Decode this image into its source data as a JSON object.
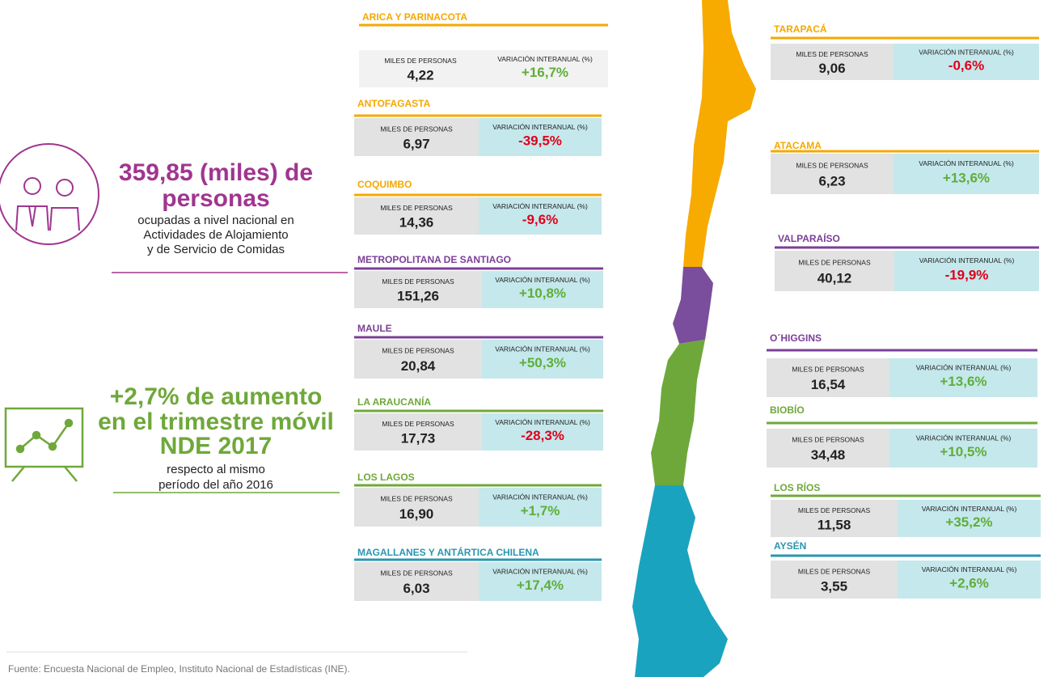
{
  "summary": {
    "employed": {
      "headline": [
        "359,85 (miles) de",
        "personas"
      ],
      "lines": [
        "ocupadas a nivel nacional en",
        "Actividades de Alojamiento",
        "y de Servicio de Comidas"
      ]
    },
    "growth": {
      "headline": [
        "+2,7% de aumento",
        "en el trimestre móvil",
        "NDE 2017"
      ],
      "lines": [
        "respecto al mismo",
        "período del año 2016"
      ]
    }
  },
  "regions": [
    {
      "name": "ARICA Y PARINACOTA",
      "color": "#f5a800",
      "persons_label": "MILES DE PERSONAS",
      "persons": "4,22",
      "variation_label": "VARIACIÓN INTERANUAL (%)",
      "variation": "+16,7%"
    },
    {
      "name": "ANTOFAGASTA",
      "color": "#f5a800",
      "persons_label": "MILES DE PERSONAS",
      "persons": "6,97",
      "variation_label": "VARIACIÓN INTERANUAL (%)",
      "variation": "-39,5%"
    },
    {
      "name": "COQUIMBO",
      "color": "#f5a800",
      "persons_label": "MILES DE PERSONAS",
      "persons": "14,36",
      "variation_label": "VARIACIÓN INTERANUAL (%)",
      "variation": "-9,6%"
    },
    {
      "name": "METROPOLITANA DE SANTIAGO",
      "color": "#7b3f98",
      "persons_label": "MILES DE PERSONAS",
      "persons": "151,26",
      "variation_label": "VARIACIÓN INTERANUAL (%)",
      "variation": "+10,8%"
    },
    {
      "name": "MAULE",
      "color": "#7b3f98",
      "persons_label": "MILES DE PERSONAS",
      "persons": "20,84",
      "variation_label": "VARIACIÓN INTERANUAL (%)",
      "variation": "+50,3%"
    },
    {
      "name": "LA ARAUCANÍA",
      "color": "#6fa83a",
      "persons_label": "MILES DE PERSONAS",
      "persons": "17,73",
      "variation_label": "VARIACIÓN INTERANUAL (%)",
      "variation": "-28,3%"
    },
    {
      "name": "LOS LAGOS",
      "color": "#6fa83a",
      "persons_label": "MILES DE PERSONAS",
      "persons": "16,90",
      "variation_label": "VARIACIÓN INTERANUAL (%)",
      "variation": "+1,7%"
    },
    {
      "name": "MAGALLANES Y ANTÁRTICA CHILENA",
      "color": "#2a96b0",
      "persons_label": "MILES DE PERSONAS",
      "persons": "6,03",
      "variation_label": "VARIACIÓN INTERANUAL (%)",
      "variation": "+17,4%"
    },
    {
      "name": "TARAPACÁ",
      "color": "#f5a800",
      "persons_label": "MILES DE PERSONAS",
      "persons": "9,06",
      "variation_label": "VARIACIÓN INTERANUAL (%)",
      "variation": "-0,6%"
    },
    {
      "name": "ATACAMA",
      "color": "#f5a800",
      "persons_label": "MILES DE PERSONAS",
      "persons": "6,23",
      "variation_label": "VARIACIÓN INTERANUAL (%)",
      "variation": "+13,6%"
    },
    {
      "name": "VALPARAÍSO",
      "color": "#7b3f98",
      "persons_label": "MILES DE PERSONAS",
      "persons": "40,12",
      "variation_label": "VARIACIÓN INTERANUAL (%)",
      "variation": "-19,9%"
    },
    {
      "name": "O´HIGGINS",
      "color": "#7b3f98",
      "persons_label": "MILES DE PERSONAS",
      "persons": "16,54",
      "variation_label": "VARIACIÓN INTERANUAL (%)",
      "variation": "+13,6%"
    },
    {
      "name": "BIOBÍO",
      "color": "#6fa83a",
      "persons_label": "MILES DE PERSONAS",
      "persons": "34,48",
      "variation_label": "VARIACIÓN INTERANUAL (%)",
      "variation": "+10,5%"
    },
    {
      "name": "LOS RÍOS",
      "color": "#6fa83a",
      "persons_label": "MILES DE PERSONAS",
      "persons": "11,58",
      "variation_label": "VARIACIÓN INTERANUAL (%)",
      "variation": "+35,2%"
    },
    {
      "name": "AYSÉN",
      "color": "#2a96b0",
      "persons_label": "MILES DE PERSONAS",
      "persons": "3,55",
      "variation_label": "VARIACIÓN INTERANUAL (%)",
      "variation": "+2,6%"
    }
  ],
  "footer": {
    "source": "Fuente: Encuesta Nacional de Empleo,  Instituto Nacional de Estadísticas (INE)."
  }
}
